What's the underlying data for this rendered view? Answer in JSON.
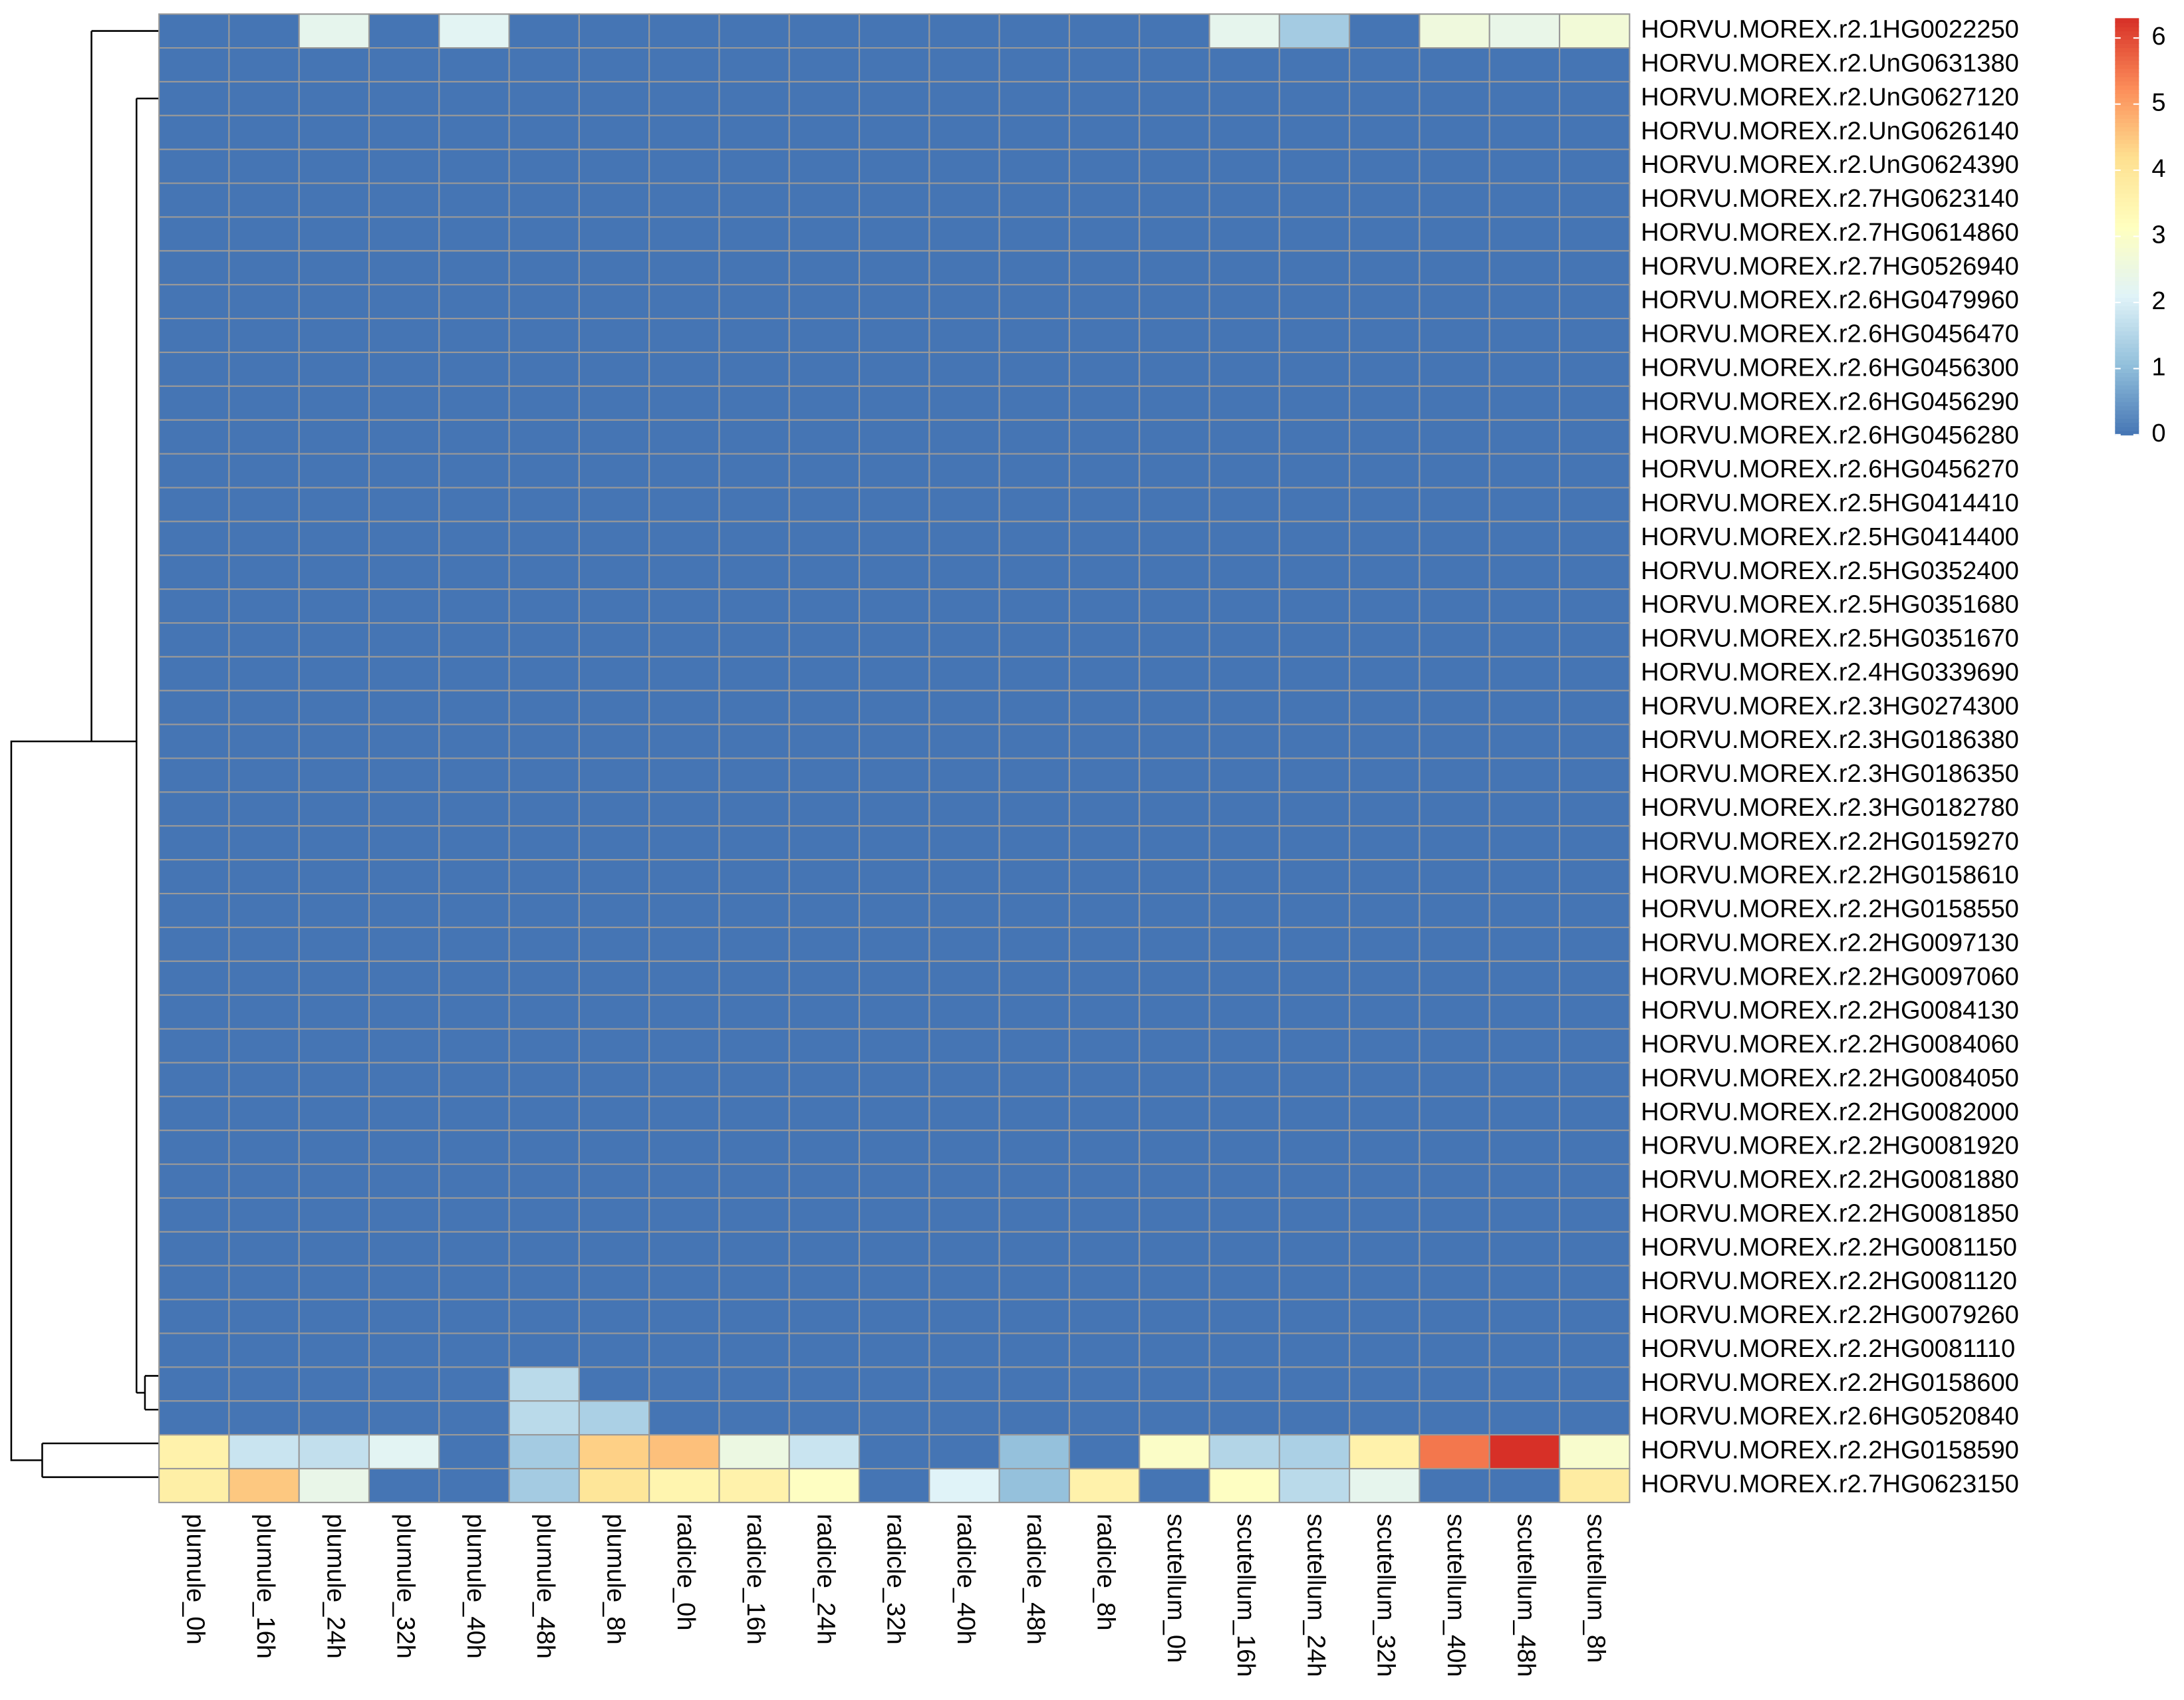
{
  "chart_data": {
    "type": "heatmap",
    "categories": [
      "plumule_0h",
      "plumule_16h",
      "plumule_24h",
      "plumule_32h",
      "plumule_40h",
      "plumule_48h",
      "plumule_8h",
      "radicle_0h",
      "radicle_16h",
      "radicle_24h",
      "radicle_32h",
      "radicle_40h",
      "radicle_48h",
      "radicle_8h",
      "scutellum_0h",
      "scutellum_16h",
      "scutellum_24h",
      "scutellum_32h",
      "scutellum_40h",
      "scutellum_48h",
      "scutellum_8h"
    ],
    "rows": [
      "HORVU.MOREX.r2.1HG0022250",
      "HORVU.MOREX.r2.UnG0631380",
      "HORVU.MOREX.r2.UnG0627120",
      "HORVU.MOREX.r2.UnG0626140",
      "HORVU.MOREX.r2.UnG0624390",
      "HORVU.MOREX.r2.7HG0623140",
      "HORVU.MOREX.r2.7HG0614860",
      "HORVU.MOREX.r2.7HG0526940",
      "HORVU.MOREX.r2.6HG0479960",
      "HORVU.MOREX.r2.6HG0456470",
      "HORVU.MOREX.r2.6HG0456300",
      "HORVU.MOREX.r2.6HG0456290",
      "HORVU.MOREX.r2.6HG0456280",
      "HORVU.MOREX.r2.6HG0456270",
      "HORVU.MOREX.r2.5HG0414410",
      "HORVU.MOREX.r2.5HG0414400",
      "HORVU.MOREX.r2.5HG0352400",
      "HORVU.MOREX.r2.5HG0351680",
      "HORVU.MOREX.r2.5HG0351670",
      "HORVU.MOREX.r2.4HG0339690",
      "HORVU.MOREX.r2.3HG0274300",
      "HORVU.MOREX.r2.3HG0186380",
      "HORVU.MOREX.r2.3HG0186350",
      "HORVU.MOREX.r2.3HG0182780",
      "HORVU.MOREX.r2.2HG0159270",
      "HORVU.MOREX.r2.2HG0158610",
      "HORVU.MOREX.r2.2HG0158550",
      "HORVU.MOREX.r2.2HG0097130",
      "HORVU.MOREX.r2.2HG0097060",
      "HORVU.MOREX.r2.2HG0084130",
      "HORVU.MOREX.r2.2HG0084060",
      "HORVU.MOREX.r2.2HG0084050",
      "HORVU.MOREX.r2.2HG0082000",
      "HORVU.MOREX.r2.2HG0081920",
      "HORVU.MOREX.r2.2HG0081880",
      "HORVU.MOREX.r2.2HG0081850",
      "HORVU.MOREX.r2.2HG0081150",
      "HORVU.MOREX.r2.2HG0081120",
      "HORVU.MOREX.r2.2HG0079260",
      "HORVU.MOREX.r2.2HG0081110",
      "HORVU.MOREX.r2.2HG0158600",
      "HORVU.MOREX.r2.6HG0520840",
      "HORVU.MOREX.r2.2HG0158590",
      "HORVU.MOREX.r2.7HG0623150"
    ],
    "values": [
      [
        0,
        0,
        2.3,
        0,
        2.2,
        0,
        0,
        0,
        0,
        0,
        0,
        0,
        0,
        0,
        0,
        2.3,
        1.3,
        0,
        2.6,
        2.4,
        2.7
      ],
      [
        0,
        0,
        0,
        0,
        0,
        0,
        0,
        0,
        0,
        0,
        0,
        0,
        0,
        0,
        0,
        0,
        0,
        0,
        0,
        0,
        0
      ],
      [
        0,
        0,
        0,
        0,
        0,
        0,
        0,
        0,
        0,
        0,
        0,
        0,
        0,
        0,
        0,
        0,
        0,
        0,
        0,
        0,
        0
      ],
      [
        0,
        0,
        0,
        0,
        0,
        0,
        0,
        0,
        0,
        0,
        0,
        0,
        0,
        0,
        0,
        0,
        0,
        0,
        0,
        0,
        0
      ],
      [
        0,
        0,
        0,
        0,
        0,
        0,
        0,
        0,
        0,
        0,
        0,
        0,
        0,
        0,
        0,
        0,
        0,
        0,
        0,
        0,
        0
      ],
      [
        0,
        0,
        0,
        0,
        0,
        0,
        0,
        0,
        0,
        0,
        0,
        0,
        0,
        0,
        0,
        0,
        0,
        0,
        0,
        0,
        0
      ],
      [
        0,
        0,
        0,
        0,
        0,
        0,
        0,
        0,
        0,
        0,
        0,
        0,
        0,
        0,
        0,
        0,
        0,
        0,
        0,
        0,
        0
      ],
      [
        0,
        0,
        0,
        0,
        0,
        0,
        0,
        0,
        0,
        0,
        0,
        0,
        0,
        0,
        0,
        0,
        0,
        0,
        0,
        0,
        0
      ],
      [
        0,
        0,
        0,
        0,
        0,
        0,
        0,
        0,
        0,
        0,
        0,
        0,
        0,
        0,
        0,
        0,
        0,
        0,
        0,
        0,
        0
      ],
      [
        0,
        0,
        0,
        0,
        0,
        0,
        0,
        0,
        0,
        0,
        0,
        0,
        0,
        0,
        0,
        0,
        0,
        0,
        0,
        0,
        0
      ],
      [
        0,
        0,
        0,
        0,
        0,
        0,
        0,
        0,
        0,
        0,
        0,
        0,
        0,
        0,
        0,
        0,
        0,
        0,
        0,
        0,
        0
      ],
      [
        0,
        0,
        0,
        0,
        0,
        0,
        0,
        0,
        0,
        0,
        0,
        0,
        0,
        0,
        0,
        0,
        0,
        0,
        0,
        0,
        0
      ],
      [
        0,
        0,
        0,
        0,
        0,
        0,
        0,
        0,
        0,
        0,
        0,
        0,
        0,
        0,
        0,
        0,
        0,
        0,
        0,
        0,
        0
      ],
      [
        0,
        0,
        0,
        0,
        0,
        0,
        0,
        0,
        0,
        0,
        0,
        0,
        0,
        0,
        0,
        0,
        0,
        0,
        0,
        0,
        0
      ],
      [
        0,
        0,
        0,
        0,
        0,
        0,
        0,
        0,
        0,
        0,
        0,
        0,
        0,
        0,
        0,
        0,
        0,
        0,
        0,
        0,
        0
      ],
      [
        0,
        0,
        0,
        0,
        0,
        0,
        0,
        0,
        0,
        0,
        0,
        0,
        0,
        0,
        0,
        0,
        0,
        0,
        0,
        0,
        0
      ],
      [
        0,
        0,
        0,
        0,
        0,
        0,
        0,
        0,
        0,
        0,
        0,
        0,
        0,
        0,
        0,
        0,
        0,
        0,
        0,
        0,
        0
      ],
      [
        0,
        0,
        0,
        0,
        0,
        0,
        0,
        0,
        0,
        0,
        0,
        0,
        0,
        0,
        0,
        0,
        0,
        0,
        0,
        0,
        0
      ],
      [
        0,
        0,
        0,
        0,
        0,
        0,
        0,
        0,
        0,
        0,
        0,
        0,
        0,
        0,
        0,
        0,
        0,
        0,
        0,
        0,
        0
      ],
      [
        0,
        0,
        0,
        0,
        0,
        0,
        0,
        0,
        0,
        0,
        0,
        0,
        0,
        0,
        0,
        0,
        0,
        0,
        0,
        0,
        0
      ],
      [
        0,
        0,
        0,
        0,
        0,
        0,
        0,
        0,
        0,
        0,
        0,
        0,
        0,
        0,
        0,
        0,
        0,
        0,
        0,
        0,
        0
      ],
      [
        0,
        0,
        0,
        0,
        0,
        0,
        0,
        0,
        0,
        0,
        0,
        0,
        0,
        0,
        0,
        0,
        0,
        0,
        0,
        0,
        0
      ],
      [
        0,
        0,
        0,
        0,
        0,
        0,
        0,
        0,
        0,
        0,
        0,
        0,
        0,
        0,
        0,
        0,
        0,
        0,
        0,
        0,
        0
      ],
      [
        0,
        0,
        0,
        0,
        0,
        0,
        0,
        0,
        0,
        0,
        0,
        0,
        0,
        0,
        0,
        0,
        0,
        0,
        0,
        0,
        0
      ],
      [
        0,
        0,
        0,
        0,
        0,
        0,
        0,
        0,
        0,
        0,
        0,
        0,
        0,
        0,
        0,
        0,
        0,
        0,
        0,
        0,
        0
      ],
      [
        0,
        0,
        0,
        0,
        0,
        0,
        0,
        0,
        0,
        0,
        0,
        0,
        0,
        0,
        0,
        0,
        0,
        0,
        0,
        0,
        0
      ],
      [
        0,
        0,
        0,
        0,
        0,
        0,
        0,
        0,
        0,
        0,
        0,
        0,
        0,
        0,
        0,
        0,
        0,
        0,
        0,
        0,
        0
      ],
      [
        0,
        0,
        0,
        0,
        0,
        0,
        0,
        0,
        0,
        0,
        0,
        0,
        0,
        0,
        0,
        0,
        0,
        0,
        0,
        0,
        0
      ],
      [
        0,
        0,
        0,
        0,
        0,
        0,
        0,
        0,
        0,
        0,
        0,
        0,
        0,
        0,
        0,
        0,
        0,
        0,
        0,
        0,
        0
      ],
      [
        0,
        0,
        0,
        0,
        0,
        0,
        0,
        0,
        0,
        0,
        0,
        0,
        0,
        0,
        0,
        0,
        0,
        0,
        0,
        0,
        0
      ],
      [
        0,
        0,
        0,
        0,
        0,
        0,
        0,
        0,
        0,
        0,
        0,
        0,
        0,
        0,
        0,
        0,
        0,
        0,
        0,
        0,
        0
      ],
      [
        0,
        0,
        0,
        0,
        0,
        0,
        0,
        0,
        0,
        0,
        0,
        0,
        0,
        0,
        0,
        0,
        0,
        0,
        0,
        0,
        0
      ],
      [
        0,
        0,
        0,
        0,
        0,
        0,
        0,
        0,
        0,
        0,
        0,
        0,
        0,
        0,
        0,
        0,
        0,
        0,
        0,
        0,
        0
      ],
      [
        0,
        0,
        0,
        0,
        0,
        0,
        0,
        0,
        0,
        0,
        0,
        0,
        0,
        0,
        0,
        0,
        0,
        0,
        0,
        0,
        0
      ],
      [
        0,
        0,
        0,
        0,
        0,
        0,
        0,
        0,
        0,
        0,
        0,
        0,
        0,
        0,
        0,
        0,
        0,
        0,
        0,
        0,
        0
      ],
      [
        0,
        0,
        0,
        0,
        0,
        0,
        0,
        0,
        0,
        0,
        0,
        0,
        0,
        0,
        0,
        0,
        0,
        0,
        0,
        0,
        0
      ],
      [
        0,
        0,
        0,
        0,
        0,
        0,
        0,
        0,
        0,
        0,
        0,
        0,
        0,
        0,
        0,
        0,
        0,
        0,
        0,
        0,
        0
      ],
      [
        0,
        0,
        0,
        0,
        0,
        0,
        0,
        0,
        0,
        0,
        0,
        0,
        0,
        0,
        0,
        0,
        0,
        0,
        0,
        0,
        0
      ],
      [
        0,
        0,
        0,
        0,
        0,
        0,
        0,
        0,
        0,
        0,
        0,
        0,
        0,
        0,
        0,
        0,
        0,
        0,
        0,
        0,
        0
      ],
      [
        0,
        0,
        0,
        0,
        0,
        0,
        0,
        0,
        0,
        0,
        0,
        0,
        0,
        0,
        0,
        0,
        0,
        0,
        0,
        0,
        0
      ],
      [
        0,
        0,
        0,
        0,
        0,
        1.6,
        0,
        0,
        0,
        0,
        0,
        0,
        0,
        0,
        0,
        0,
        0,
        0,
        0,
        0,
        0
      ],
      [
        0,
        0,
        0,
        0,
        0,
        1.6,
        1.4,
        0,
        0,
        0,
        0,
        0,
        0,
        0,
        0,
        0,
        0,
        0,
        0,
        0,
        0
      ],
      [
        3.6,
        1.8,
        1.7,
        2.2,
        0,
        1.3,
        4.4,
        4.6,
        2.5,
        1.8,
        0,
        0,
        1.1,
        0,
        3.0,
        1.5,
        1.4,
        3.6,
        5.5,
        6.3,
        2.9
      ],
      [
        3.7,
        4.5,
        2.4,
        0,
        0,
        1.3,
        4.0,
        3.5,
        3.6,
        3.1,
        0,
        2.1,
        1.1,
        3.6,
        0,
        3.1,
        1.6,
        2.3,
        0,
        0,
        3.8
      ]
    ],
    "colors": [
      "#4575B4",
      "#91BFDB",
      "#E0F3F8",
      "#FFFFBF",
      "#FEE090",
      "#FC8D59",
      "#D73027"
    ],
    "zlim": [
      0,
      6.3
    ],
    "zticks": [
      0,
      1,
      2,
      3,
      4,
      5,
      6
    ],
    "grid_color": "#999999"
  }
}
